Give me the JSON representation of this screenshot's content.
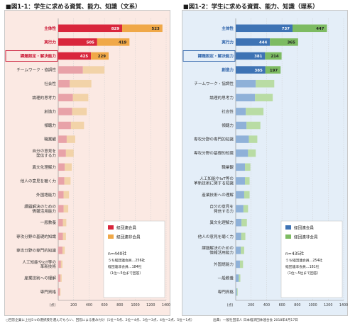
{
  "title_left": "■図1-1：学生に求める資質、能力、知識（文系）",
  "title_right": "■図1-2：学生に求める資質、能力、知識（理系）",
  "footnote_left": "○回答企業に上位5つの選択肢を選んでもらい、回答による重み付け（1位＝5点、2位＝4点、3位＝3点、4位＝2点、5位＝1点）",
  "footnote_right": "出典：一般社団法人 日本経済団体連合会 2018年4月17日",
  "chart_data": [
    {
      "type": "bar",
      "orientation": "horizontal",
      "stacked": true,
      "title": "■図1-1：学生に求める資質、能力、知識（文系）",
      "xlim": [
        0,
        1400
      ],
      "x_ticks": [
        "(点)",
        "200",
        "400",
        "600",
        "800",
        "1000",
        "1200",
        "1400"
      ],
      "legend": {
        "position": "bottom-right",
        "entries": [
          "経団連会員",
          "経団連非会員"
        ]
      },
      "sample_note": [
        "n=440社",
        "うち経団連会員…256社",
        "経団連非会員…184社",
        "（1位～5位まで回答）"
      ],
      "colors": {
        "member": "#d9263c",
        "nonmember": "#f0a848",
        "member_light": "#e8a2a8",
        "nonmember_light": "#f2d3a8",
        "accent": "#c8102e"
      },
      "categories": [
        "主体性",
        "実行力",
        "課題設定・解決能力",
        "チームワーク・協調性",
        "社会性",
        "論理的思考力",
        "創造力",
        "傾聴力",
        "職業観",
        "自分の意見を\n発信する力",
        "異文化理解力",
        "他人の意見を聴く力",
        "外国語能力",
        "課題解決のための\n情報活用能力",
        "一般教養",
        "専攻分野の基礎的知識",
        "専攻分野の専門的知識",
        "人工知能やIoT等の\n革新技術",
        "産業技術への理解",
        "専門資格"
      ],
      "series": [
        {
          "name": "経団連会員",
          "values": [
            829,
            505,
            425,
            320,
            150,
            190,
            180,
            165,
            110,
            100,
            85,
            80,
            70,
            70,
            60,
            60,
            55,
            35,
            30,
            20
          ]
        },
        {
          "name": "経団連非会員",
          "values": [
            523,
            419,
            229,
            280,
            280,
            200,
            190,
            170,
            110,
            100,
            90,
            80,
            70,
            60,
            45,
            40,
            30,
            20,
            15,
            10
          ]
        }
      ],
      "highlighted": [
        "主体性",
        "実行力",
        "課題設定・解決能力"
      ],
      "boxed": [
        "課題設定・解決能力"
      ],
      "value_labels": {
        "主体性": [
          "829",
          "523"
        ],
        "実行力": [
          "505",
          "419"
        ],
        "課題設定・解決能力": [
          "425",
          "229"
        ]
      }
    },
    {
      "type": "bar",
      "orientation": "horizontal",
      "stacked": true,
      "title": "■図1-2：学生に求める資質、能力、知識（理系）",
      "xlim": [
        0,
        1400
      ],
      "x_ticks": [
        "(点)",
        "200",
        "400",
        "600",
        "800",
        "1000",
        "1200",
        "1400"
      ],
      "legend": {
        "position": "bottom-right",
        "entries": [
          "経団連会員",
          "経団連非会員"
        ]
      },
      "sample_note": [
        "n=435社",
        "うち経団連会員…254社",
        "経団連非会員…181社",
        "（1位～5位まで回答）"
      ],
      "colors": {
        "member": "#3e73b4",
        "nonmember": "#7dbb62",
        "member_light": "#8fb1d8",
        "nonmember_light": "#b9dca4",
        "accent": "#2a60a8"
      },
      "categories": [
        "主体性",
        "実行力",
        "課題設定・解決能力",
        "創造力",
        "チームワーク・協調性",
        "論理的思考力",
        "社会性",
        "傾聴力",
        "専攻分野の専門的知識",
        "専攻分野の基礎的知識",
        "職業観",
        "人工知能やIoT等の\n革新技術に関する知識",
        "産業技術への理解",
        "自分の意見を\n発信する力",
        "異文化理解力",
        "他人の意見を聴く力",
        "課題解決のための\n情報活用能力",
        "外国語能力",
        "一般教養",
        "専門資格"
      ],
      "series": [
        {
          "name": "経団連会員",
          "values": [
            737,
            444,
            381,
            385,
            260,
            250,
            130,
            140,
            170,
            160,
            120,
            120,
            110,
            100,
            75,
            70,
            65,
            55,
            40,
            15
          ]
        },
        {
          "name": "経団連非会員",
          "values": [
            447,
            365,
            214,
            197,
            240,
            230,
            230,
            180,
            110,
            100,
            70,
            60,
            70,
            60,
            70,
            55,
            45,
            40,
            20,
            10
          ]
        }
      ],
      "highlighted": [
        "主体性",
        "実行力",
        "課題設定・解決能力",
        "創造力"
      ],
      "boxed": [
        "課題設定・解決能力"
      ],
      "value_labels": {
        "主体性": [
          "737",
          "447"
        ],
        "実行力": [
          "444",
          "365"
        ],
        "課題設定・解決能力": [
          "381",
          "214"
        ],
        "創造力": [
          "385",
          "197"
        ]
      }
    }
  ]
}
